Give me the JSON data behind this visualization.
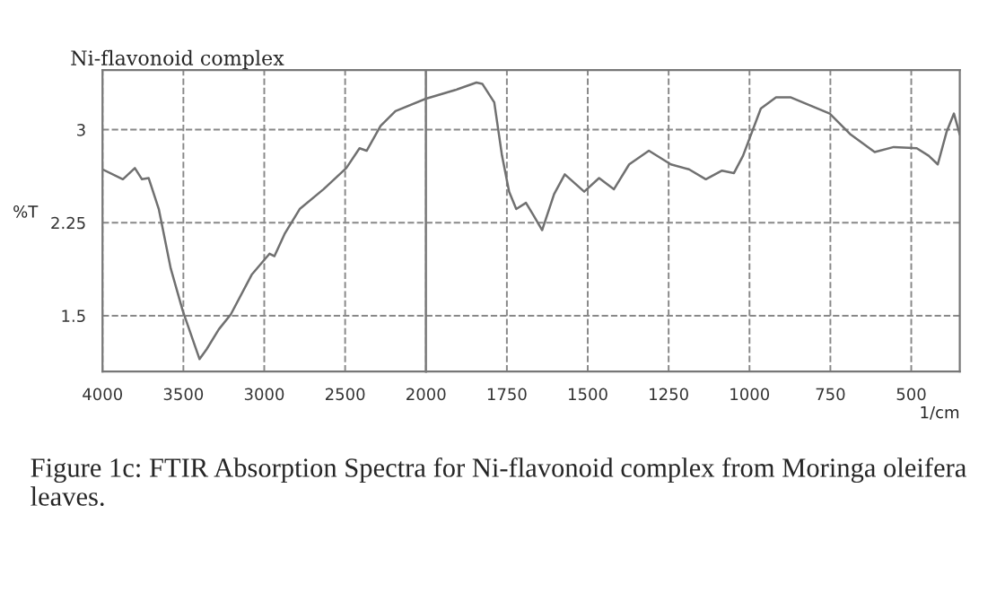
{
  "chart_data": [
    {
      "type": "line",
      "title": "Ni-flavonoid complex",
      "ylabel": "%T",
      "annotations": [
        "Figure 1c: FTIR Absorption Spectra for Ni-flavonoid complex from Moringa oleifera leaves."
      ],
      "x": [
        4000,
        3874,
        3800,
        3756,
        3715,
        3652,
        3578,
        3504,
        3400,
        3356,
        3281,
        3207,
        3078,
        2967,
        2937,
        2874,
        2781,
        2633,
        2493,
        2411,
        2367,
        2281,
        2189,
        2000
      ],
      "series": [
        {
          "color": "#707070",
          "values": [
            2.68,
            2.6,
            2.69,
            2.6,
            2.61,
            2.36,
            1.88,
            1.54,
            1.15,
            1.23,
            1.39,
            1.51,
            1.83,
            2.0,
            1.98,
            2.16,
            2.36,
            2.52,
            2.69,
            2.85,
            2.83,
            3.03,
            3.15,
            3.25
          ]
        }
      ],
      "xlim": [
        4000,
        2000
      ],
      "xticks": [
        4000,
        3500,
        3000,
        2500,
        2000
      ],
      "ylim": [
        1.05,
        3.48
      ],
      "yticks": [
        1.5,
        2.25,
        3
      ],
      "grid": true,
      "marker": "none",
      "line_style": "solid"
    },
    {
      "type": "line",
      "xlabel": "1/cm",
      "x": [
        2000,
        1909,
        1844,
        1826,
        1789,
        1765,
        1743,
        1721,
        1691,
        1668,
        1641,
        1604,
        1571,
        1511,
        1465,
        1419,
        1372,
        1311,
        1243,
        1187,
        1135,
        1085,
        1048,
        1020,
        965,
        918,
        872,
        817,
        752,
        687,
        613,
        554,
        483,
        446,
        418,
        391,
        368,
        350
      ],
      "series": [
        {
          "color": "#707070",
          "values": [
            3.25,
            3.32,
            3.38,
            3.37,
            3.22,
            2.79,
            2.5,
            2.36,
            2.41,
            2.31,
            2.19,
            2.48,
            2.64,
            2.5,
            2.61,
            2.52,
            2.72,
            2.83,
            2.72,
            2.68,
            2.6,
            2.67,
            2.65,
            2.79,
            3.17,
            3.26,
            3.26,
            3.2,
            3.13,
            2.96,
            2.82,
            2.86,
            2.85,
            2.79,
            2.72,
            2.98,
            3.13,
            2.96
          ]
        }
      ],
      "xlim": [
        2000,
        350
      ],
      "xticks": [
        1750,
        1500,
        1250,
        1000,
        750,
        500
      ],
      "ylim": [
        1.05,
        3.48
      ],
      "yticks": [
        1.5,
        2.25,
        3
      ],
      "tick_labels": "x",
      "grid": true,
      "marker": "none",
      "line_style": "solid"
    }
  ]
}
